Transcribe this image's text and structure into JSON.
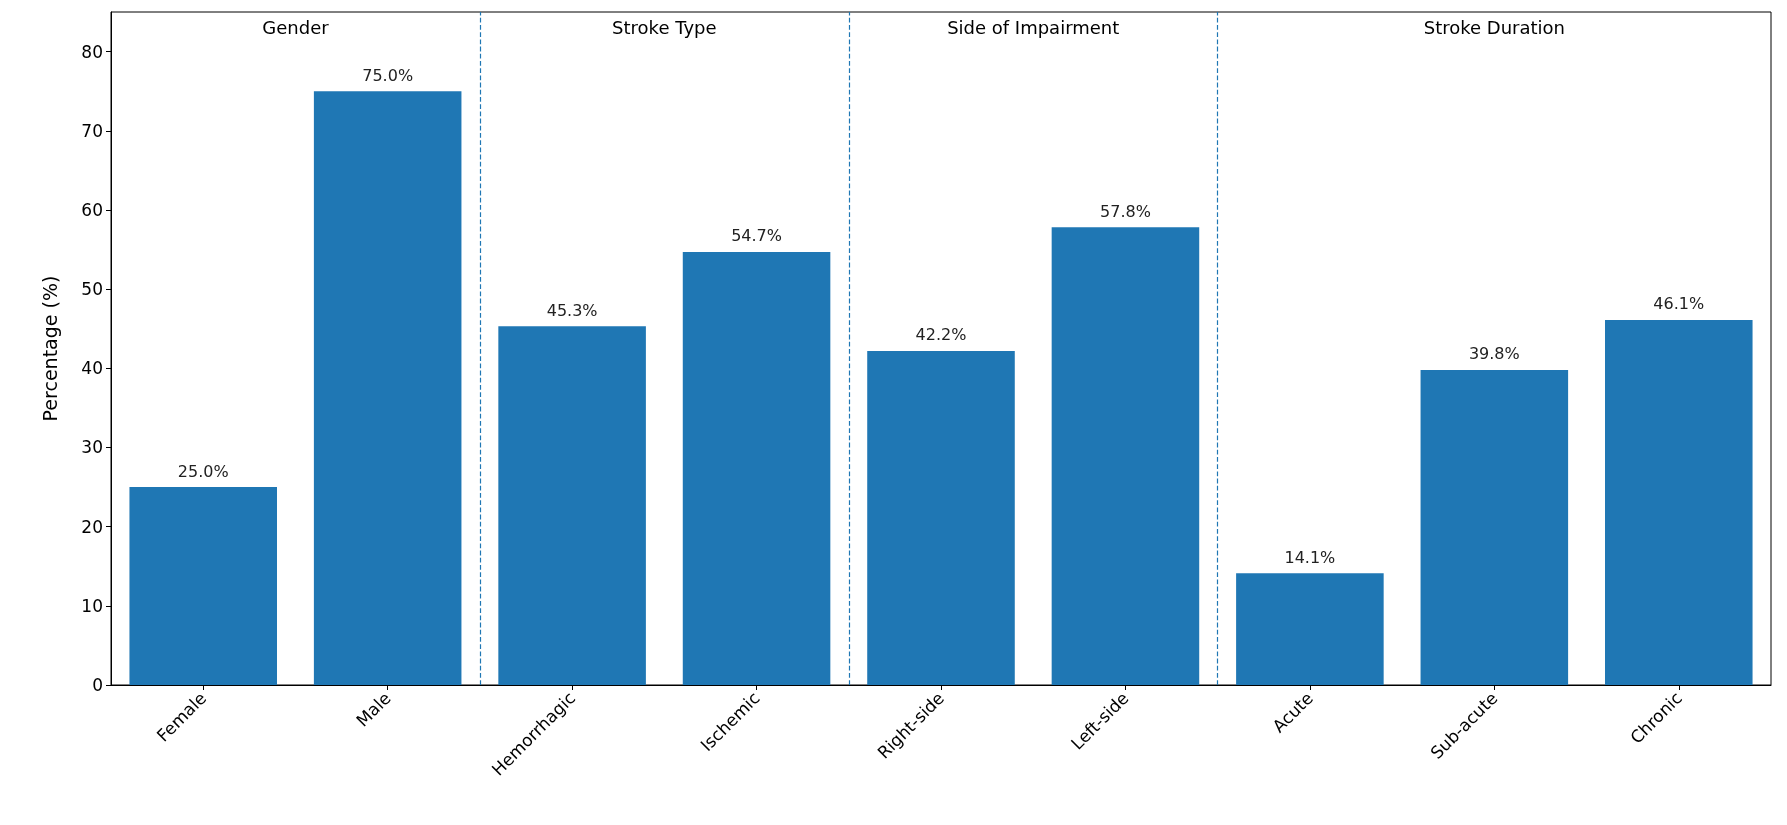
{
  "chart_data": {
    "type": "bar",
    "ylabel": "Percentage (%)",
    "categories": [
      "Female",
      "Male",
      "Hemorrhagic",
      "Ischemic",
      "Right-side",
      "Left-side",
      "Acute",
      "Sub-acute",
      "Chronic"
    ],
    "values": [
      25.0,
      75.0,
      45.3,
      54.7,
      42.2,
      57.8,
      14.1,
      39.8,
      46.1
    ],
    "value_labels": [
      "25.0%",
      "75.0%",
      "45.3%",
      "54.7%",
      "42.2%",
      "57.8%",
      "14.1%",
      "39.8%",
      "46.1%"
    ],
    "color": "#1f77b4",
    "ylim": [
      0,
      85
    ],
    "yticks": [
      0,
      10,
      20,
      30,
      40,
      50,
      60,
      70,
      80
    ],
    "grid": false,
    "annotations": [
      "Gender",
      "Stroke Type",
      "Side of Impairment",
      "Stroke Duration"
    ]
  }
}
